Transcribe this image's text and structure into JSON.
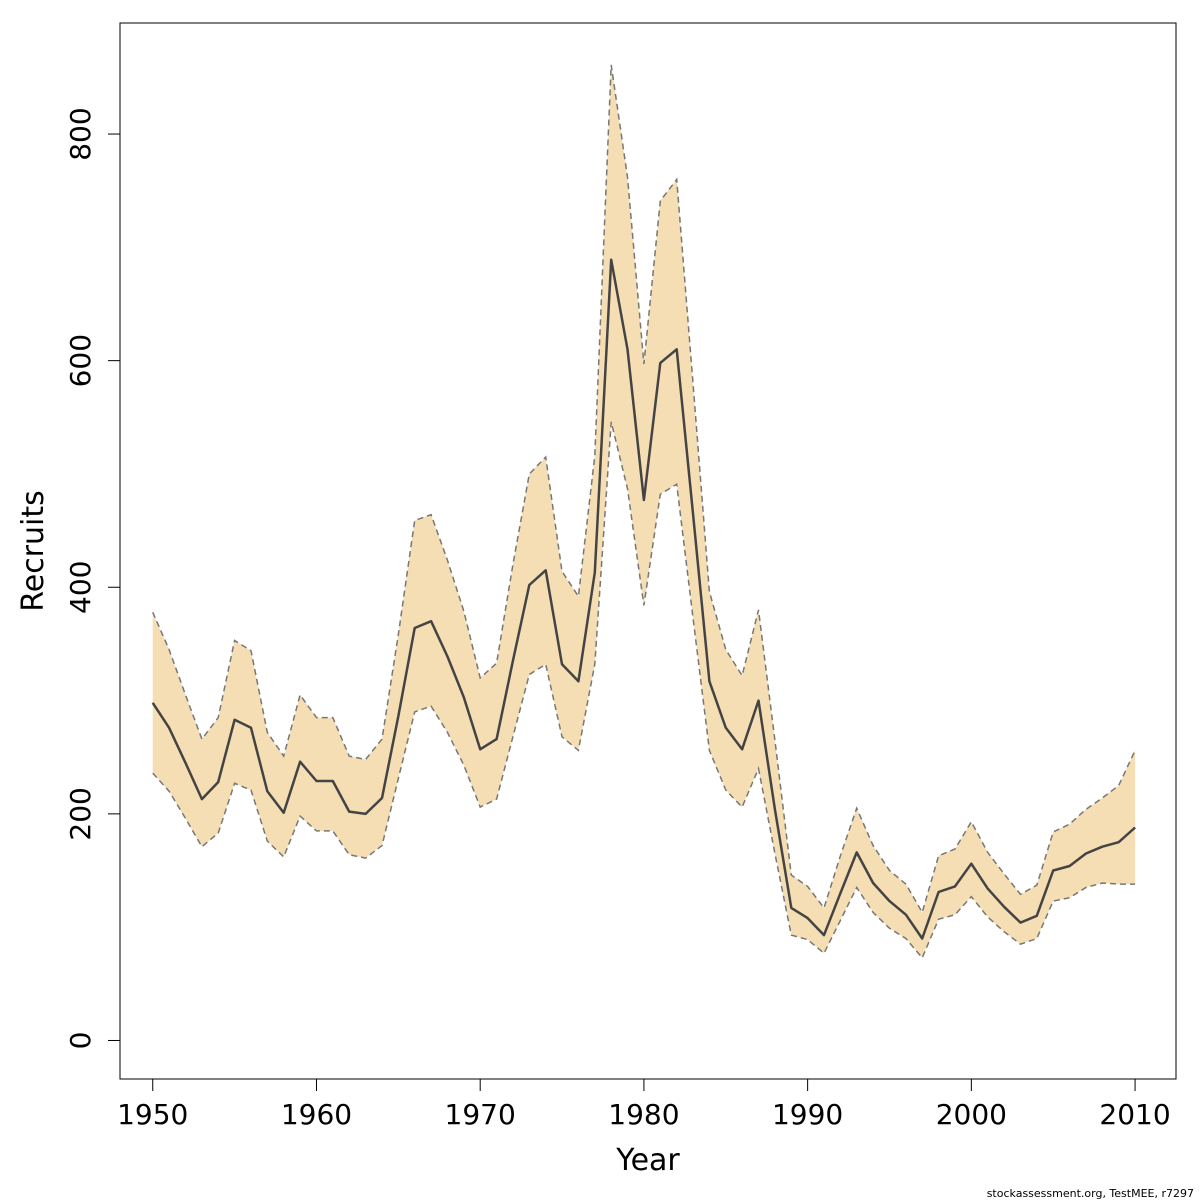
{
  "chart_data": {
    "type": "area",
    "xlabel": "Year",
    "ylabel": "Recruits",
    "xlim": [
      1948,
      2012.5
    ],
    "ylim": [
      -34,
      898
    ],
    "x_ticks": [
      1950,
      1960,
      1970,
      1980,
      1990,
      2000,
      2010
    ],
    "y_ticks": [
      0,
      200,
      400,
      600,
      800
    ],
    "grid": false,
    "legend": "none",
    "x": [
      1950,
      1951,
      1952,
      1953,
      1954,
      1955,
      1956,
      1957,
      1958,
      1959,
      1960,
      1961,
      1962,
      1963,
      1964,
      1965,
      1966,
      1967,
      1968,
      1969,
      1970,
      1971,
      1972,
      1973,
      1974,
      1975,
      1976,
      1977,
      1978,
      1979,
      1980,
      1981,
      1982,
      1983,
      1984,
      1985,
      1986,
      1987,
      1988,
      1989,
      1990,
      1991,
      1992,
      1993,
      1994,
      1995,
      1996,
      1997,
      1998,
      1999,
      2000,
      2001,
      2002,
      2003,
      2004,
      2005,
      2006,
      2007,
      2008,
      2009,
      2010
    ],
    "series": [
      {
        "role": "estimate",
        "values": [
          298,
          276,
          245,
          213,
          228,
          283,
          276,
          220,
          201,
          246,
          229,
          229,
          202,
          200,
          214,
          286,
          364,
          370,
          339,
          303,
          257,
          266,
          335,
          402,
          415,
          332,
          317,
          413,
          689,
          610,
          477,
          598,
          610,
          465,
          317,
          276,
          257,
          300,
          204,
          117,
          108,
          93,
          130,
          166,
          139,
          123,
          111,
          90,
          131,
          136,
          156,
          134,
          118,
          104,
          110,
          150,
          154,
          165,
          171,
          175,
          188
        ]
      },
      {
        "role": "upper",
        "values": [
          378,
          345,
          305,
          266,
          285,
          353,
          344,
          272,
          251,
          305,
          285,
          285,
          251,
          248,
          266,
          358,
          459,
          464,
          424,
          379,
          320,
          333,
          420,
          500,
          515,
          414,
          392,
          516,
          861,
          762,
          597,
          741,
          760,
          580,
          396,
          345,
          322,
          380,
          265,
          146,
          136,
          117,
          163,
          205,
          172,
          150,
          138,
          113,
          163,
          169,
          193,
          166,
          147,
          129,
          137,
          184,
          191,
          204,
          214,
          225,
          256
        ]
      },
      {
        "role": "lower",
        "values": [
          236,
          220,
          196,
          171,
          183,
          227,
          221,
          176,
          162,
          198,
          185,
          185,
          164,
          161,
          172,
          231,
          290,
          295,
          272,
          243,
          206,
          213,
          268,
          323,
          332,
          268,
          256,
          332,
          546,
          487,
          384,
          482,
          491,
          373,
          256,
          221,
          206,
          240,
          165,
          93,
          89,
          77,
          106,
          135,
          113,
          99,
          90,
          73,
          107,
          111,
          127,
          109,
          96,
          85,
          90,
          123,
          126,
          135,
          139,
          138,
          138
        ]
      }
    ],
    "colors": {
      "band_fill": "#f5deb3",
      "band_edge": "#777777",
      "line": "#444444",
      "axis": "#000000"
    }
  },
  "footnote": "stockassessment.org, TestMEE, r7297"
}
